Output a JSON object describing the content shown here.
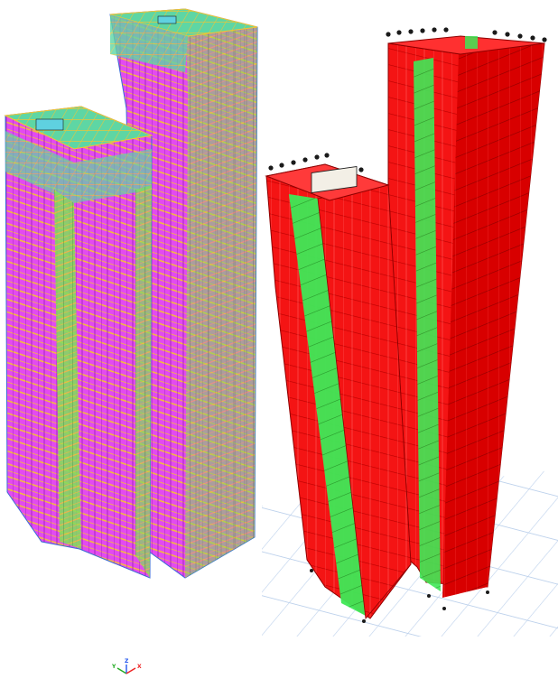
{
  "figure": {
    "left_view": {
      "style": "wireframe",
      "tower_count": 2,
      "colors": {
        "floor_beams": "#f4c430",
        "columns": "#32cd32",
        "walls": "#e040fb",
        "wall_deep": "#c020d8",
        "slab": "#2ec08a",
        "edges": "#3a6bd6"
      }
    },
    "right_view": {
      "style": "extruded-solid",
      "tower_count": 2,
      "colors": {
        "walls": "#ff1a1a",
        "wall_dark": "#d40000",
        "core": "#35e04a",
        "grid": "#a9c2e6",
        "supports": "#222222"
      }
    },
    "axis_triad": {
      "labels": [
        "Y",
        "Z",
        "X"
      ],
      "colors": [
        "#22aa22",
        "#2255ee",
        "#ee2222"
      ]
    }
  }
}
